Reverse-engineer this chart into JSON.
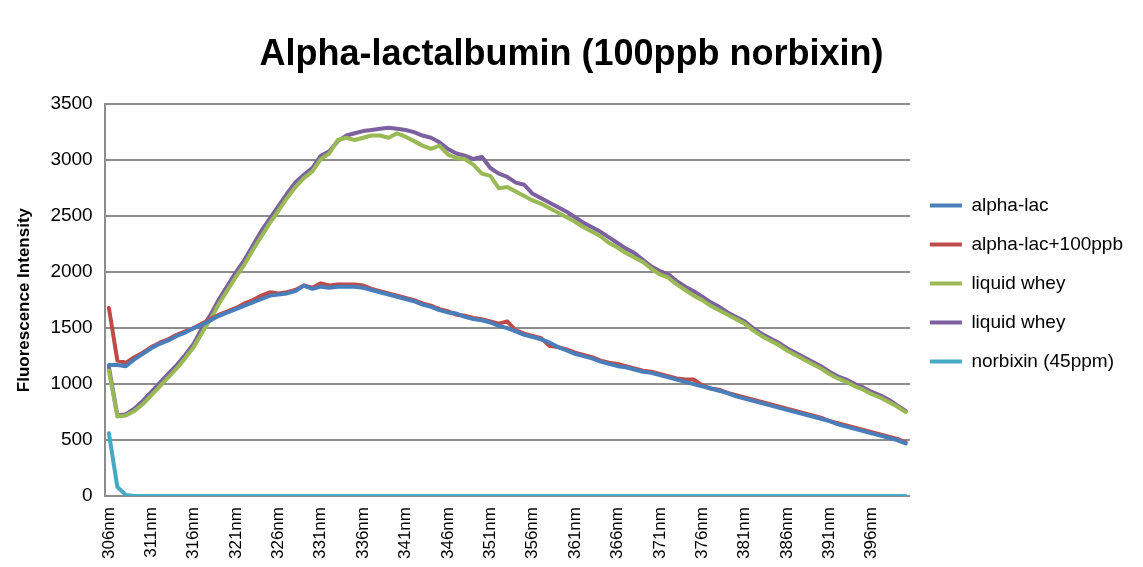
{
  "chart_data": {
    "type": "line",
    "title": "Alpha-lactalbumin (100ppb norbixin)",
    "ylabel": "Fluorescence Intensity",
    "categories": [
      "306nm",
      null,
      null,
      null,
      null,
      "311nm",
      null,
      null,
      null,
      null,
      "316nm",
      null,
      null,
      null,
      null,
      "321nm",
      null,
      null,
      null,
      null,
      "326nm",
      null,
      null,
      null,
      null,
      "331nm",
      null,
      null,
      null,
      null,
      "336nm",
      null,
      null,
      null,
      null,
      "341nm",
      null,
      null,
      null,
      null,
      "346nm",
      null,
      null,
      null,
      null,
      "351nm",
      null,
      null,
      null,
      null,
      "356nm",
      null,
      null,
      null,
      null,
      "361nm",
      null,
      null,
      null,
      null,
      "366nm",
      null,
      null,
      null,
      null,
      "371nm",
      null,
      null,
      null,
      null,
      "376nm",
      null,
      null,
      null,
      null,
      "381nm",
      null,
      null,
      null,
      null,
      "386nm",
      null,
      null,
      null,
      null,
      "391nm",
      null,
      null,
      null,
      null,
      "396nm",
      null,
      null,
      null,
      null
    ],
    "ylim": [
      0,
      3500
    ],
    "yticks": [
      0,
      500,
      1000,
      1500,
      2000,
      2500,
      3000,
      3500
    ],
    "grid": "y",
    "legend": "right",
    "series": [
      {
        "name": "alpha-lac",
        "color": "#4a7ebb",
        "values": [
          1170,
          1170,
          1160,
          1220,
          1270,
          1320,
          1360,
          1390,
          1430,
          1460,
          1500,
          1530,
          1570,
          1610,
          1640,
          1670,
          1700,
          1730,
          1760,
          1790,
          1800,
          1810,
          1830,
          1880,
          1850,
          1870,
          1860,
          1870,
          1870,
          1870,
          1860,
          1840,
          1820,
          1800,
          1780,
          1760,
          1740,
          1710,
          1690,
          1660,
          1640,
          1630,
          1600,
          1580,
          1570,
          1550,
          1520,
          1500,
          1470,
          1440,
          1420,
          1400,
          1370,
          1330,
          1300,
          1270,
          1250,
          1230,
          1200,
          1180,
          1160,
          1150,
          1130,
          1110,
          1100,
          1080,
          1060,
          1040,
          1020,
          1000,
          980,
          960,
          940,
          920,
          890,
          870,
          850,
          830,
          810,
          790,
          770,
          750,
          730,
          710,
          690,
          670,
          640,
          620,
          600,
          580,
          560,
          540,
          520,
          500,
          470
        ]
      },
      {
        "name": "alpha-lac+100ppb",
        "color": "#be4b48",
        "values": [
          1680,
          1210,
          1190,
          1240,
          1280,
          1330,
          1370,
          1400,
          1440,
          1470,
          1500,
          1540,
          1580,
          1620,
          1650,
          1680,
          1720,
          1750,
          1790,
          1820,
          1810,
          1820,
          1840,
          1880,
          1860,
          1900,
          1880,
          1890,
          1890,
          1890,
          1880,
          1850,
          1830,
          1810,
          1790,
          1770,
          1750,
          1720,
          1700,
          1670,
          1650,
          1620,
          1610,
          1590,
          1580,
          1560,
          1540,
          1560,
          1480,
          1450,
          1430,
          1410,
          1340,
          1330,
          1310,
          1280,
          1260,
          1240,
          1210,
          1190,
          1180,
          1160,
          1140,
          1120,
          1110,
          1090,
          1070,
          1050,
          1040,
          1040,
          990,
          960,
          950,
          920,
          900,
          880,
          860,
          840,
          820,
          800,
          780,
          760,
          740,
          720,
          700,
          670,
          650,
          630,
          610,
          590,
          570,
          550,
          530,
          510,
          480
        ]
      },
      {
        "name": "liquid whey",
        "color": "#98b954",
        "values": [
          1120,
          710,
          720,
          760,
          820,
          900,
          980,
          1060,
          1140,
          1230,
          1330,
          1460,
          1580,
          1720,
          1840,
          1960,
          2070,
          2200,
          2320,
          2440,
          2550,
          2660,
          2760,
          2840,
          2900,
          3010,
          3060,
          3180,
          3200,
          3180,
          3200,
          3220,
          3220,
          3200,
          3240,
          3210,
          3170,
          3130,
          3100,
          3130,
          3050,
          3020,
          3010,
          2960,
          2880,
          2860,
          2750,
          2760,
          2720,
          2680,
          2640,
          2610,
          2570,
          2530,
          2490,
          2450,
          2400,
          2360,
          2320,
          2260,
          2220,
          2170,
          2130,
          2090,
          2030,
          1980,
          1950,
          1890,
          1840,
          1790,
          1750,
          1700,
          1660,
          1620,
          1580,
          1540,
          1480,
          1430,
          1390,
          1350,
          1300,
          1260,
          1220,
          1180,
          1140,
          1090,
          1050,
          1020,
          980,
          950,
          910,
          880,
          840,
          800,
          750
        ]
      },
      {
        "name": "liquid whey",
        "color": "#7d60a0",
        "values": [
          1150,
          720,
          730,
          780,
          850,
          930,
          1010,
          1090,
          1170,
          1260,
          1360,
          1500,
          1620,
          1760,
          1880,
          2000,
          2110,
          2240,
          2370,
          2480,
          2590,
          2700,
          2800,
          2870,
          2930,
          3040,
          3080,
          3170,
          3220,
          3240,
          3260,
          3270,
          3280,
          3290,
          3280,
          3270,
          3250,
          3220,
          3200,
          3160,
          3100,
          3060,
          3040,
          3010,
          3030,
          2930,
          2880,
          2850,
          2800,
          2780,
          2700,
          2660,
          2620,
          2580,
          2540,
          2490,
          2440,
          2400,
          2360,
          2310,
          2260,
          2210,
          2170,
          2110,
          2050,
          2010,
          1980,
          1920,
          1870,
          1830,
          1780,
          1730,
          1690,
          1640,
          1600,
          1560,
          1500,
          1450,
          1410,
          1370,
          1320,
          1280,
          1240,
          1200,
          1160,
          1110,
          1070,
          1040,
          1000,
          970,
          930,
          900,
          860,
          810,
          760
        ]
      },
      {
        "name": "norbixin (45ppm)",
        "color": "#46aac5",
        "values": [
          560,
          80,
          10,
          0,
          0,
          0,
          0,
          0,
          0,
          0,
          0,
          0,
          0,
          0,
          0,
          0,
          0,
          0,
          0,
          0,
          0,
          0,
          0,
          0,
          0,
          0,
          0,
          0,
          0,
          0,
          0,
          0,
          0,
          0,
          0,
          0,
          0,
          0,
          0,
          0,
          0,
          0,
          0,
          0,
          0,
          0,
          0,
          0,
          0,
          0,
          0,
          0,
          0,
          0,
          0,
          0,
          0,
          0,
          0,
          0,
          0,
          0,
          0,
          0,
          0,
          0,
          0,
          0,
          0,
          0,
          0,
          0,
          0,
          0,
          0,
          0,
          0,
          0,
          0,
          0,
          0,
          0,
          0,
          0,
          0,
          0,
          0,
          0,
          0,
          0,
          0,
          0,
          0,
          0,
          0
        ]
      }
    ]
  }
}
